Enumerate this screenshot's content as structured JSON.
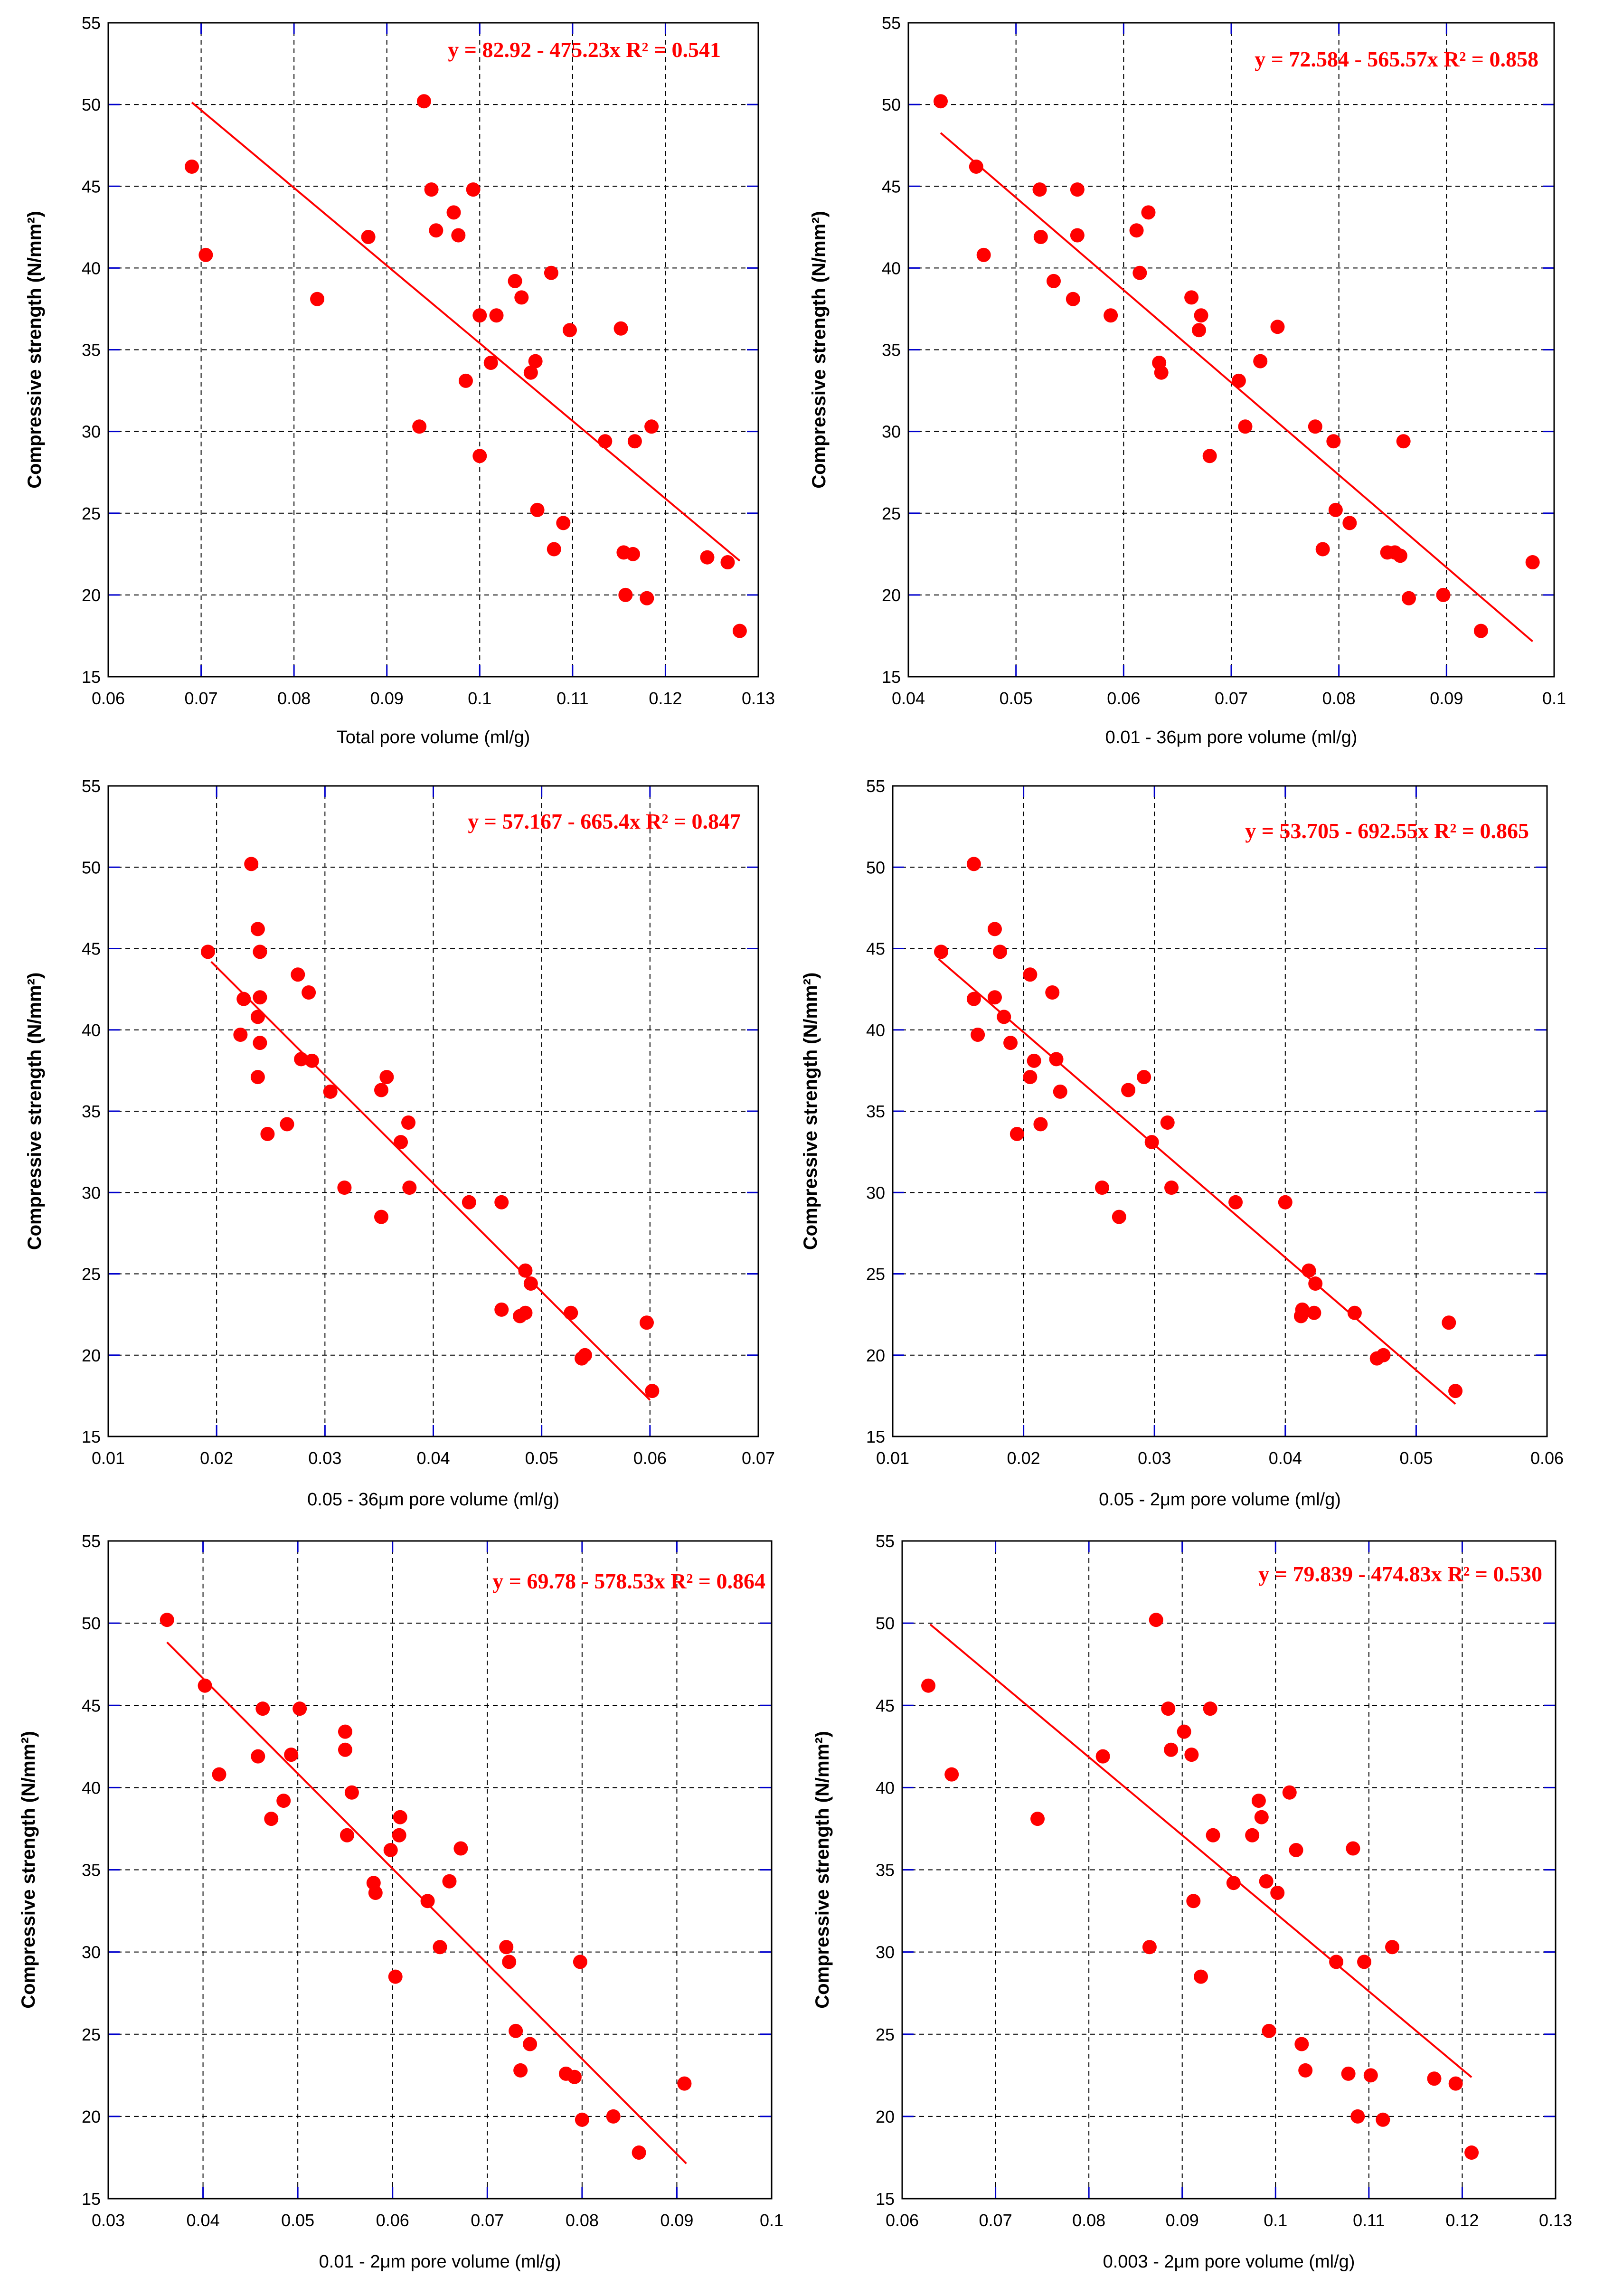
{
  "colors": {
    "marker": "#ff0000",
    "fit_line": "#ff0000",
    "equation": "#ff0000",
    "grid_dashed": "#000000",
    "grid_solid": "#0000cc"
  },
  "chart_data": [
    {
      "type": "scatter",
      "xlabel": "Total pore volume (ml/g)",
      "ylabel": "Compressive strength (N/mm²)",
      "xlim": [
        0.06,
        0.13
      ],
      "ylim": [
        15,
        55
      ],
      "xticks": [
        "0.06",
        "0.07",
        "0.08",
        "0.09",
        "0.1",
        "0.11",
        "0.12",
        "0.13"
      ],
      "yticks": [
        "15",
        "20",
        "25",
        "30",
        "35",
        "40",
        "45",
        "50",
        "55"
      ],
      "grid": "on",
      "equation": "y = 82.92 - 475.23x   R² = 0.541",
      "fit": {
        "intercept": 82.92,
        "slope": -475.23,
        "x_range": [
          0.069,
          0.128
        ]
      },
      "points": [
        [
          0.069,
          46.2
        ],
        [
          0.0705,
          40.8
        ],
        [
          0.0825,
          38.1
        ],
        [
          0.088,
          41.9
        ],
        [
          0.0935,
          30.3
        ],
        [
          0.094,
          50.2
        ],
        [
          0.0948,
          44.8
        ],
        [
          0.0953,
          42.3
        ],
        [
          0.0972,
          43.4
        ],
        [
          0.0977,
          42.0
        ],
        [
          0.0985,
          33.1
        ],
        [
          0.0993,
          44.8
        ],
        [
          0.1,
          37.1
        ],
        [
          0.1,
          28.5
        ],
        [
          0.1012,
          34.2
        ],
        [
          0.1018,
          37.1
        ],
        [
          0.1038,
          39.2
        ],
        [
          0.1045,
          38.2
        ],
        [
          0.1055,
          33.6
        ],
        [
          0.106,
          34.3
        ],
        [
          0.1062,
          25.2
        ],
        [
          0.1077,
          39.7
        ],
        [
          0.108,
          22.8
        ],
        [
          0.109,
          24.4
        ],
        [
          0.1097,
          36.2
        ],
        [
          0.1135,
          29.4
        ],
        [
          0.1152,
          36.3
        ],
        [
          0.1155,
          22.6
        ],
        [
          0.1157,
          20.0
        ],
        [
          0.1165,
          22.5
        ],
        [
          0.1167,
          29.4
        ],
        [
          0.118,
          19.8
        ],
        [
          0.1185,
          30.3
        ],
        [
          0.1245,
          22.3
        ],
        [
          0.1267,
          22.0
        ],
        [
          0.128,
          17.8
        ]
      ]
    },
    {
      "type": "scatter",
      "xlabel": "0.01 - 36μm pore volume (ml/g)",
      "ylabel": "Compressive strength (N/mm²)",
      "xlim": [
        0.04,
        0.1
      ],
      "ylim": [
        15,
        55
      ],
      "xticks": [
        "0.04",
        "0.05",
        "0.06",
        "0.07",
        "0.08",
        "0.09",
        "0.1"
      ],
      "yticks": [
        "15",
        "20",
        "25",
        "30",
        "35",
        "40",
        "45",
        "50",
        "55"
      ],
      "grid": "on",
      "equation": "y = 72.584 - 565.57x   R² = 0.858",
      "fit": {
        "intercept": 72.584,
        "slope": -565.57,
        "x_range": [
          0.043,
          0.098
        ]
      },
      "points": [
        [
          0.043,
          50.2
        ],
        [
          0.0463,
          46.2
        ],
        [
          0.047,
          40.8
        ],
        [
          0.0522,
          44.8
        ],
        [
          0.0523,
          41.9
        ],
        [
          0.0535,
          39.2
        ],
        [
          0.0553,
          38.1
        ],
        [
          0.0557,
          44.8
        ],
        [
          0.0557,
          42.0
        ],
        [
          0.0588,
          37.1
        ],
        [
          0.0612,
          42.3
        ],
        [
          0.0615,
          39.7
        ],
        [
          0.0623,
          43.4
        ],
        [
          0.0633,
          34.2
        ],
        [
          0.0635,
          33.6
        ],
        [
          0.0663,
          38.2
        ],
        [
          0.0672,
          37.1
        ],
        [
          0.067,
          36.2
        ],
        [
          0.068,
          28.5
        ],
        [
          0.0707,
          33.1
        ],
        [
          0.0713,
          30.3
        ],
        [
          0.0727,
          34.3
        ],
        [
          0.0743,
          36.4
        ],
        [
          0.0778,
          30.3
        ],
        [
          0.0785,
          22.8
        ],
        [
          0.0795,
          29.4
        ],
        [
          0.0797,
          25.2
        ],
        [
          0.081,
          24.4
        ],
        [
          0.0845,
          22.6
        ],
        [
          0.0852,
          22.6
        ],
        [
          0.0857,
          22.4
        ],
        [
          0.086,
          29.4
        ],
        [
          0.0865,
          19.8
        ],
        [
          0.0897,
          20.0
        ],
        [
          0.0932,
          17.8
        ],
        [
          0.098,
          22.0
        ]
      ]
    },
    {
      "type": "scatter",
      "xlabel": "0.05 - 36μm pore volume (ml/g)",
      "ylabel": "Compressive strength (N/mm²)",
      "xlim": [
        0.01,
        0.07
      ],
      "ylim": [
        15,
        55
      ],
      "xticks": [
        "0.01",
        "0.02",
        "0.03",
        "0.04",
        "0.05",
        "0.06",
        "0.07"
      ],
      "yticks": [
        "15",
        "20",
        "25",
        "30",
        "35",
        "40",
        "45",
        "50",
        "55"
      ],
      "grid": "on",
      "equation": "y = 57.167 - 665.4x   R² = 0.847",
      "fit": {
        "intercept": 57.167,
        "slope": -665.4,
        "x_range": [
          0.0195,
          0.06
        ]
      },
      "points": [
        [
          0.0192,
          44.8
        ],
        [
          0.0222,
          39.7
        ],
        [
          0.0225,
          41.9
        ],
        [
          0.0232,
          50.2
        ],
        [
          0.0238,
          40.8
        ],
        [
          0.0238,
          37.1
        ],
        [
          0.0238,
          46.2
        ],
        [
          0.024,
          44.8
        ],
        [
          0.024,
          42.0
        ],
        [
          0.024,
          39.2
        ],
        [
          0.0247,
          33.6
        ],
        [
          0.0265,
          34.2
        ],
        [
          0.0275,
          43.4
        ],
        [
          0.0278,
          38.2
        ],
        [
          0.0285,
          42.3
        ],
        [
          0.0288,
          38.1
        ],
        [
          0.0305,
          36.2
        ],
        [
          0.0318,
          30.3
        ],
        [
          0.0352,
          36.3
        ],
        [
          0.0352,
          28.5
        ],
        [
          0.0357,
          37.1
        ],
        [
          0.037,
          33.1
        ],
        [
          0.0377,
          34.3
        ],
        [
          0.0378,
          30.3
        ],
        [
          0.0433,
          29.4
        ],
        [
          0.0463,
          22.8
        ],
        [
          0.0463,
          29.4
        ],
        [
          0.048,
          22.4
        ],
        [
          0.0485,
          25.2
        ],
        [
          0.0485,
          22.6
        ],
        [
          0.049,
          24.4
        ],
        [
          0.0527,
          22.6
        ],
        [
          0.0537,
          19.8
        ],
        [
          0.054,
          20.0
        ],
        [
          0.0597,
          22.0
        ],
        [
          0.0602,
          17.8
        ]
      ]
    },
    {
      "type": "scatter",
      "xlabel": "0.05 - 2μm pore volume (ml/g)",
      "ylabel": "Compressive strength (N/mm²)",
      "xlim": [
        0.01,
        0.06
      ],
      "ylim": [
        15,
        55
      ],
      "xticks": [
        "0.01",
        "0.02",
        "0.03",
        "0.04",
        "0.05",
        "0.06"
      ],
      "yticks": [
        "15",
        "20",
        "25",
        "30",
        "35",
        "40",
        "45",
        "50",
        "55"
      ],
      "grid": "on",
      "equation": "y = 53.705 - 692.55x   R² = 0.865",
      "fit": {
        "intercept": 53.705,
        "slope": -692.55,
        "x_range": [
          0.0135,
          0.053
        ]
      },
      "points": [
        [
          0.0137,
          44.8
        ],
        [
          0.0162,
          50.2
        ],
        [
          0.0162,
          41.9
        ],
        [
          0.0165,
          39.7
        ],
        [
          0.0178,
          42.0
        ],
        [
          0.0178,
          46.2
        ],
        [
          0.0182,
          44.8
        ],
        [
          0.0185,
          40.8
        ],
        [
          0.019,
          39.2
        ],
        [
          0.0195,
          33.6
        ],
        [
          0.0205,
          37.1
        ],
        [
          0.0205,
          43.4
        ],
        [
          0.0208,
          38.1
        ],
        [
          0.0213,
          34.2
        ],
        [
          0.0222,
          42.3
        ],
        [
          0.0225,
          38.2
        ],
        [
          0.0228,
          36.2
        ],
        [
          0.026,
          30.3
        ],
        [
          0.0273,
          28.5
        ],
        [
          0.028,
          36.3
        ],
        [
          0.0292,
          37.1
        ],
        [
          0.0298,
          33.1
        ],
        [
          0.031,
          34.3
        ],
        [
          0.0313,
          30.3
        ],
        [
          0.0362,
          29.4
        ],
        [
          0.04,
          29.4
        ],
        [
          0.0412,
          22.4
        ],
        [
          0.0413,
          22.8
        ],
        [
          0.0418,
          25.2
        ],
        [
          0.0422,
          22.6
        ],
        [
          0.0423,
          24.4
        ],
        [
          0.0453,
          22.6
        ],
        [
          0.047,
          19.8
        ],
        [
          0.0475,
          20.0
        ],
        [
          0.0525,
          22.0
        ],
        [
          0.053,
          17.8
        ]
      ]
    },
    {
      "type": "scatter",
      "xlabel": "0.01 - 2μm pore volume (ml/g)",
      "ylabel": "Compressive strength (N/mm²)",
      "xlim": [
        0.03,
        0.1
      ],
      "ylim": [
        15,
        55
      ],
      "xticks": [
        "0.03",
        "0.04",
        "0.05",
        "0.06",
        "0.07",
        "0.08",
        "0.09",
        "0.1"
      ],
      "yticks": [
        "15",
        "20",
        "25",
        "30",
        "35",
        "40",
        "45",
        "50",
        "55"
      ],
      "grid": "on",
      "equation": "y = 69.78 - 578.53x   R² = 0.864",
      "fit": {
        "intercept": 69.78,
        "slope": -578.53,
        "x_range": [
          0.0362,
          0.091
        ]
      },
      "points": [
        [
          0.0362,
          50.2
        ],
        [
          0.0402,
          46.2
        ],
        [
          0.0417,
          40.8
        ],
        [
          0.0458,
          41.9
        ],
        [
          0.0463,
          44.8
        ],
        [
          0.0472,
          38.1
        ],
        [
          0.0485,
          39.2
        ],
        [
          0.0493,
          42.0
        ],
        [
          0.0502,
          44.8
        ],
        [
          0.055,
          43.4
        ],
        [
          0.055,
          42.3
        ],
        [
          0.0552,
          37.1
        ],
        [
          0.0557,
          39.7
        ],
        [
          0.058,
          34.2
        ],
        [
          0.0582,
          33.6
        ],
        [
          0.0598,
          36.2
        ],
        [
          0.0603,
          28.5
        ],
        [
          0.0607,
          37.1
        ],
        [
          0.0608,
          38.2
        ],
        [
          0.0637,
          33.1
        ],
        [
          0.065,
          30.3
        ],
        [
          0.066,
          34.3
        ],
        [
          0.0672,
          36.3
        ],
        [
          0.072,
          30.3
        ],
        [
          0.0723,
          29.4
        ],
        [
          0.073,
          25.2
        ],
        [
          0.0735,
          22.8
        ],
        [
          0.0745,
          24.4
        ],
        [
          0.0783,
          22.6
        ],
        [
          0.0792,
          22.4
        ],
        [
          0.0798,
          29.4
        ],
        [
          0.08,
          19.8
        ],
        [
          0.0833,
          20.0
        ],
        [
          0.086,
          17.8
        ],
        [
          0.0908,
          22.0
        ]
      ]
    },
    {
      "type": "scatter",
      "xlabel": "0.003 - 2μm pore volume (ml/g)",
      "ylabel": "Compressive strength (N/mm²)",
      "xlim": [
        0.06,
        0.13
      ],
      "ylim": [
        15,
        55
      ],
      "xticks": [
        "0.06",
        "0.07",
        "0.08",
        "0.09",
        "0.1",
        "0.11",
        "0.12",
        "0.13"
      ],
      "yticks": [
        "15",
        "20",
        "25",
        "30",
        "35",
        "40",
        "45",
        "50",
        "55"
      ],
      "grid": "on",
      "equation": "y = 79.839 - 474.83x   R² = 0.530",
      "fit": {
        "intercept": 79.839,
        "slope": -474.83,
        "x_range": [
          0.063,
          0.121
        ]
      },
      "points": [
        [
          0.0628,
          46.2
        ],
        [
          0.0653,
          40.8
        ],
        [
          0.0745,
          38.1
        ],
        [
          0.0815,
          41.9
        ],
        [
          0.0865,
          30.3
        ],
        [
          0.0872,
          50.2
        ],
        [
          0.0885,
          44.8
        ],
        [
          0.0888,
          42.3
        ],
        [
          0.0902,
          43.4
        ],
        [
          0.091,
          42.0
        ],
        [
          0.0912,
          33.1
        ],
        [
          0.092,
          28.5
        ],
        [
          0.093,
          44.8
        ],
        [
          0.0933,
          37.1
        ],
        [
          0.0955,
          34.2
        ],
        [
          0.0975,
          37.1
        ],
        [
          0.0982,
          39.2
        ],
        [
          0.0985,
          38.2
        ],
        [
          0.099,
          34.3
        ],
        [
          0.0993,
          25.2
        ],
        [
          0.1002,
          33.6
        ],
        [
          0.1015,
          39.7
        ],
        [
          0.1022,
          36.2
        ],
        [
          0.1028,
          24.4
        ],
        [
          0.1032,
          22.8
        ],
        [
          0.1065,
          29.4
        ],
        [
          0.1078,
          22.6
        ],
        [
          0.1083,
          36.3
        ],
        [
          0.1088,
          20.0
        ],
        [
          0.1095,
          29.4
        ],
        [
          0.1102,
          22.5
        ],
        [
          0.1115,
          19.8
        ],
        [
          0.1125,
          30.3
        ],
        [
          0.117,
          22.3
        ],
        [
          0.1193,
          22.0
        ],
        [
          0.121,
          17.8
        ]
      ]
    }
  ]
}
